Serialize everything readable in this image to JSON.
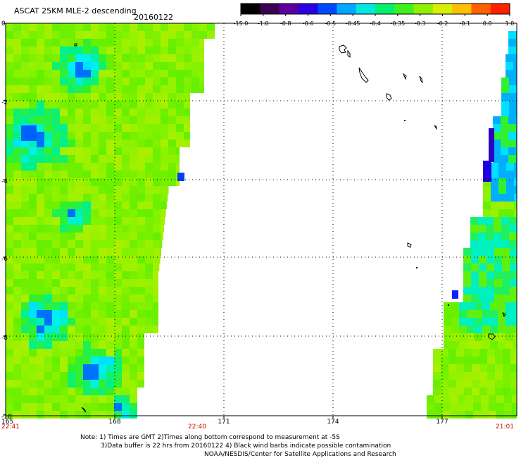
{
  "header": {
    "title": "ASCAT 25KM MLE-2 descending",
    "date": "20160122"
  },
  "colorbar": {
    "labels": [
      "-15.0",
      "-1.0",
      "-0.8",
      "-0.6",
      "-0.5",
      "-0.45",
      "-0.4",
      "-0.35",
      "-0.3",
      "-0.2",
      "-0.1",
      "0.0",
      "1.0"
    ],
    "colors": [
      "#000000",
      "#3a0052",
      "#5a00a0",
      "#2a00e0",
      "#0048ff",
      "#00a8ff",
      "#00e8e0",
      "#00f070",
      "#40f020",
      "#90f000",
      "#d8f000",
      "#ffc000",
      "#ff6000",
      "#ff2000"
    ]
  },
  "map": {
    "x_ticks": [
      "165",
      "168",
      "171",
      "174",
      "177"
    ],
    "y_ticks": [
      "0",
      "-2",
      "-4",
      "-6",
      "-8",
      "-10"
    ],
    "time_labels": [
      "22:41",
      "22:40",
      "21:01"
    ],
    "lon_range": [
      165,
      179.5
    ],
    "lat_range": [
      -10,
      0
    ]
  },
  "notes": {
    "line1": "Note: 1) Times are GMT 2)Times along bottom correspond to measurement at -5S",
    "line2": "3)Data buffer is 22 hrs from 20160122 4) Black wind barbs indicate possible contamination",
    "line3": "NOAA/NESDIS/Center for Satellite Applications and Research"
  }
}
